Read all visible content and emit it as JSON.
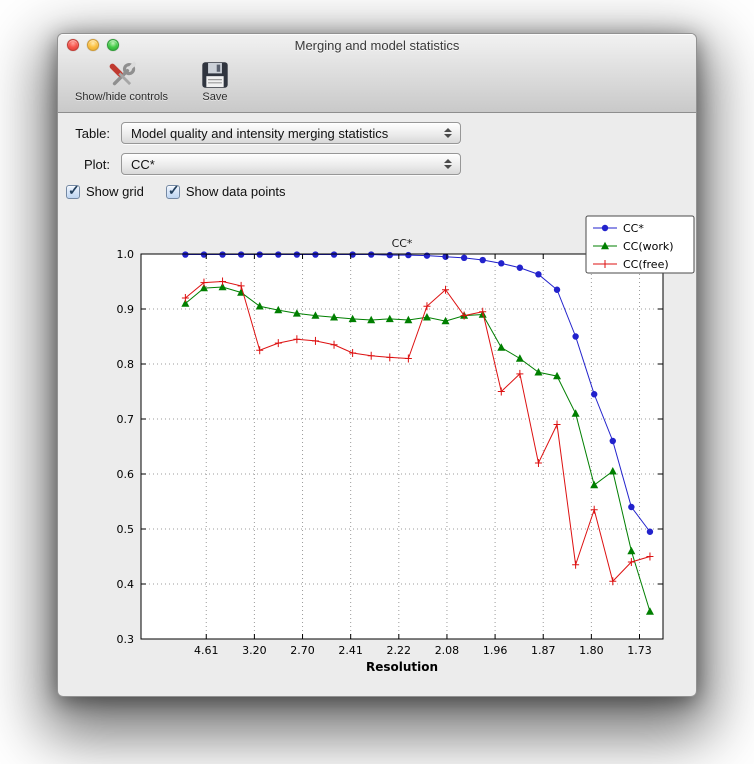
{
  "window": {
    "title": "Merging and model statistics",
    "toolbar": {
      "items": [
        {
          "label": "Show/hide controls",
          "icon": "tools-icon"
        },
        {
          "label": "Save",
          "icon": "save-icon"
        }
      ]
    },
    "controls": {
      "table_label": "Table:",
      "table_value": "Model quality and intensity merging statistics",
      "plot_label": "Plot:",
      "plot_value": "CC*",
      "checkboxes": [
        {
          "label": "Show grid",
          "checked": true
        },
        {
          "label": "Show data points",
          "checked": true
        }
      ]
    }
  },
  "chart_data": {
    "type": "line",
    "title": "CC*",
    "xlabel": "Resolution",
    "ylabel": "",
    "ylim": [
      0.3,
      1.0
    ],
    "yticks": [
      0.3,
      0.4,
      0.5,
      0.6,
      0.7,
      0.8,
      0.9,
      1.0
    ],
    "x_tick_labels": [
      "4.61",
      "3.20",
      "2.70",
      "2.41",
      "2.22",
      "2.08",
      "1.96",
      "1.87",
      "1.80",
      "1.73"
    ],
    "grid": true,
    "legend_position": "upper right",
    "series": [
      {
        "name": "CC*",
        "color": "#2222cc",
        "marker": "circle",
        "values": [
          0.999,
          0.999,
          0.999,
          0.999,
          0.999,
          0.999,
          0.999,
          0.999,
          0.999,
          0.999,
          0.999,
          0.998,
          0.998,
          0.997,
          0.995,
          0.993,
          0.989,
          0.983,
          0.975,
          0.963,
          0.935,
          0.85,
          0.745,
          0.66,
          0.54,
          0.495
        ]
      },
      {
        "name": "CC(work)",
        "color": "#007f00",
        "marker": "triangle",
        "values": [
          0.91,
          0.938,
          0.94,
          0.93,
          0.905,
          0.898,
          0.892,
          0.888,
          0.885,
          0.882,
          0.88,
          0.882,
          0.88,
          0.885,
          0.878,
          0.888,
          0.89,
          0.83,
          0.81,
          0.785,
          0.778,
          0.71,
          0.58,
          0.605,
          0.46,
          0.35
        ]
      },
      {
        "name": "CC(free)",
        "color": "#dd1111",
        "marker": "plus",
        "values": [
          0.92,
          0.948,
          0.95,
          0.942,
          0.825,
          0.838,
          0.845,
          0.842,
          0.835,
          0.82,
          0.815,
          0.812,
          0.81,
          0.905,
          0.935,
          0.888,
          0.895,
          0.75,
          0.782,
          0.62,
          0.69,
          0.435,
          0.535,
          0.405,
          0.44,
          0.45
        ]
      }
    ]
  }
}
